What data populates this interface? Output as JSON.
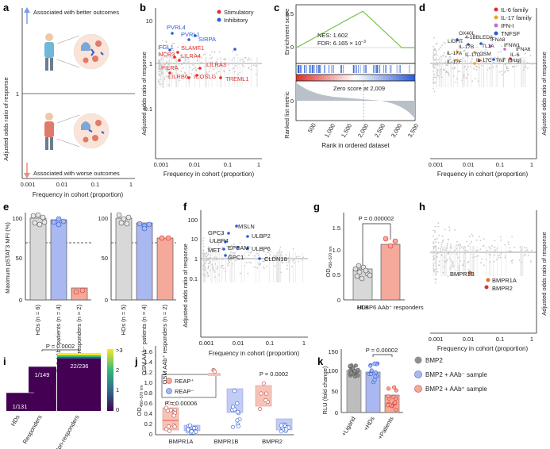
{
  "panels": {
    "a": "a",
    "b": "b",
    "c": "c",
    "d": "d",
    "e": "e",
    "f": "f",
    "g": "g",
    "h": "h",
    "i": "i",
    "j": "j",
    "k": "k"
  },
  "common": {
    "y_or": "Adjusted odds ratio of response",
    "x_freq": "Frequency in cohort (proportion)",
    "x_ticks": [
      "0.001",
      "0.01",
      "0.1",
      "1"
    ],
    "y_ticks": [
      "10",
      "1",
      "0.1"
    ],
    "y_ticks_b": [
      "100",
      "10",
      "1",
      "0.1"
    ]
  },
  "a": {
    "better": "Associated with better outcomes",
    "worse": "Associated with worse outcomes"
  },
  "b": {
    "legend": [
      "Stimulatory",
      "Inhibitory"
    ],
    "blue_labels": [
      "PVRL4",
      "PVRL1",
      "SIRPA",
      "FGL1"
    ],
    "red_labels": [
      "SLAMF1",
      "LILRA4",
      "NCR3",
      "LILRA3",
      "PILRA",
      "LILRB6",
      "ICOSLG",
      "TREML1"
    ]
  },
  "c": {
    "ylabel_top": "Enrichment score",
    "ylabel_bot": "Ranked list metric",
    "nes": "NES: 1.602",
    "fdr": "FDR: 6.165 × 10",
    "fdr_exp": "−3",
    "zero": "Zero score at 2,009",
    "xlabel": "Rank in ordered dataset",
    "xticks": [
      "500",
      "1,000",
      "1,500",
      "2,000",
      "2,500",
      "3,000",
      "3,500"
    ],
    "top_ticks": [
      "0.5",
      "0"
    ],
    "bot_ticks": [
      "0"
    ]
  },
  "d": {
    "legend": [
      "IL-6 family",
      "IL-17 family",
      "IFN-I",
      "TNFSF"
    ],
    "labels": [
      "OX40L",
      "LIGHT",
      "4-1BBL",
      "EDA",
      "IFNA8",
      "IFNW1",
      "IL-17B",
      "TL1A",
      "IL-17A",
      "IL-17D",
      "OSM",
      "IL-17F",
      "IL-17C",
      "TNF (drug)",
      "IL-6",
      "IFNA6"
    ]
  },
  "e": {
    "ylabel": "Maximum pSTAT3 MFI (%)",
    "yticks": [
      "100",
      "50",
      "0"
    ],
    "left_groups": [
      "HDs (n = 6)",
      "IL-6 AAb⁻ patients (n = 4)",
      "IL-6 AAb⁺ responders (n = 2)"
    ],
    "right_groups": [
      "HDs (n = 5)",
      "OSM AAb⁻ patients (n = 4)",
      "OSM AAb⁺ responders (n = 2)"
    ]
  },
  "f": {
    "labels": [
      "MSLN",
      "GPC3",
      "ULBP2",
      "ULBP4",
      "EPCAM",
      "ULBP6",
      "MET",
      "GPC1",
      "CLDN18"
    ]
  },
  "g": {
    "ylabel": "OD",
    "ysub": "450–570 nm",
    "p": "P = 0.000002",
    "groups": [
      "HDs",
      "ULBP6 AAb⁺ responders"
    ],
    "yticks": [
      "1.5",
      "1.0",
      "0.5",
      "0"
    ]
  },
  "h": {
    "labels": [
      "BMPR1B",
      "BMPR1A",
      "BMPR2"
    ]
  },
  "i": {
    "p": "P = 0.0002",
    "groups": [
      "HDs",
      "Responders",
      "Non-responders"
    ],
    "counts": [
      "1/131",
      "1/149",
      "22/236"
    ],
    "scale": [
      ">3",
      "2",
      "1",
      "0"
    ]
  },
  "j": {
    "ylabel": "OD",
    "ysub": "450–570 nm",
    "legend": [
      "REAP⁺",
      "REAP⁻"
    ],
    "p1": "P = 0.00006",
    "p2": "P = 0.0002",
    "groups": [
      "BMPR1A",
      "BMPR1B",
      "BMPR2"
    ],
    "yticks": [
      "1.6",
      "1.4",
      "1.2",
      "1.0",
      "0.8",
      "0.6",
      "0.4",
      "0.2",
      "0"
    ]
  },
  "k": {
    "ylabel": "RLU (fold change)",
    "p": "P = 0.00002",
    "legend": [
      "BMP2",
      "BMP2 + AAb⁻ sample",
      "BMP2 + AAb⁺ sample"
    ],
    "groups": [
      "+Ligand",
      "+HDs",
      "+Patients"
    ],
    "yticks": [
      "150",
      "100",
      "50",
      "0"
    ]
  },
  "colors": {
    "blue": "#2a5bd7",
    "red": "#e0302a",
    "grey": "#bdbdbd",
    "salmon": "#f4a99a",
    "lightblue": "#a9b8f0"
  }
}
